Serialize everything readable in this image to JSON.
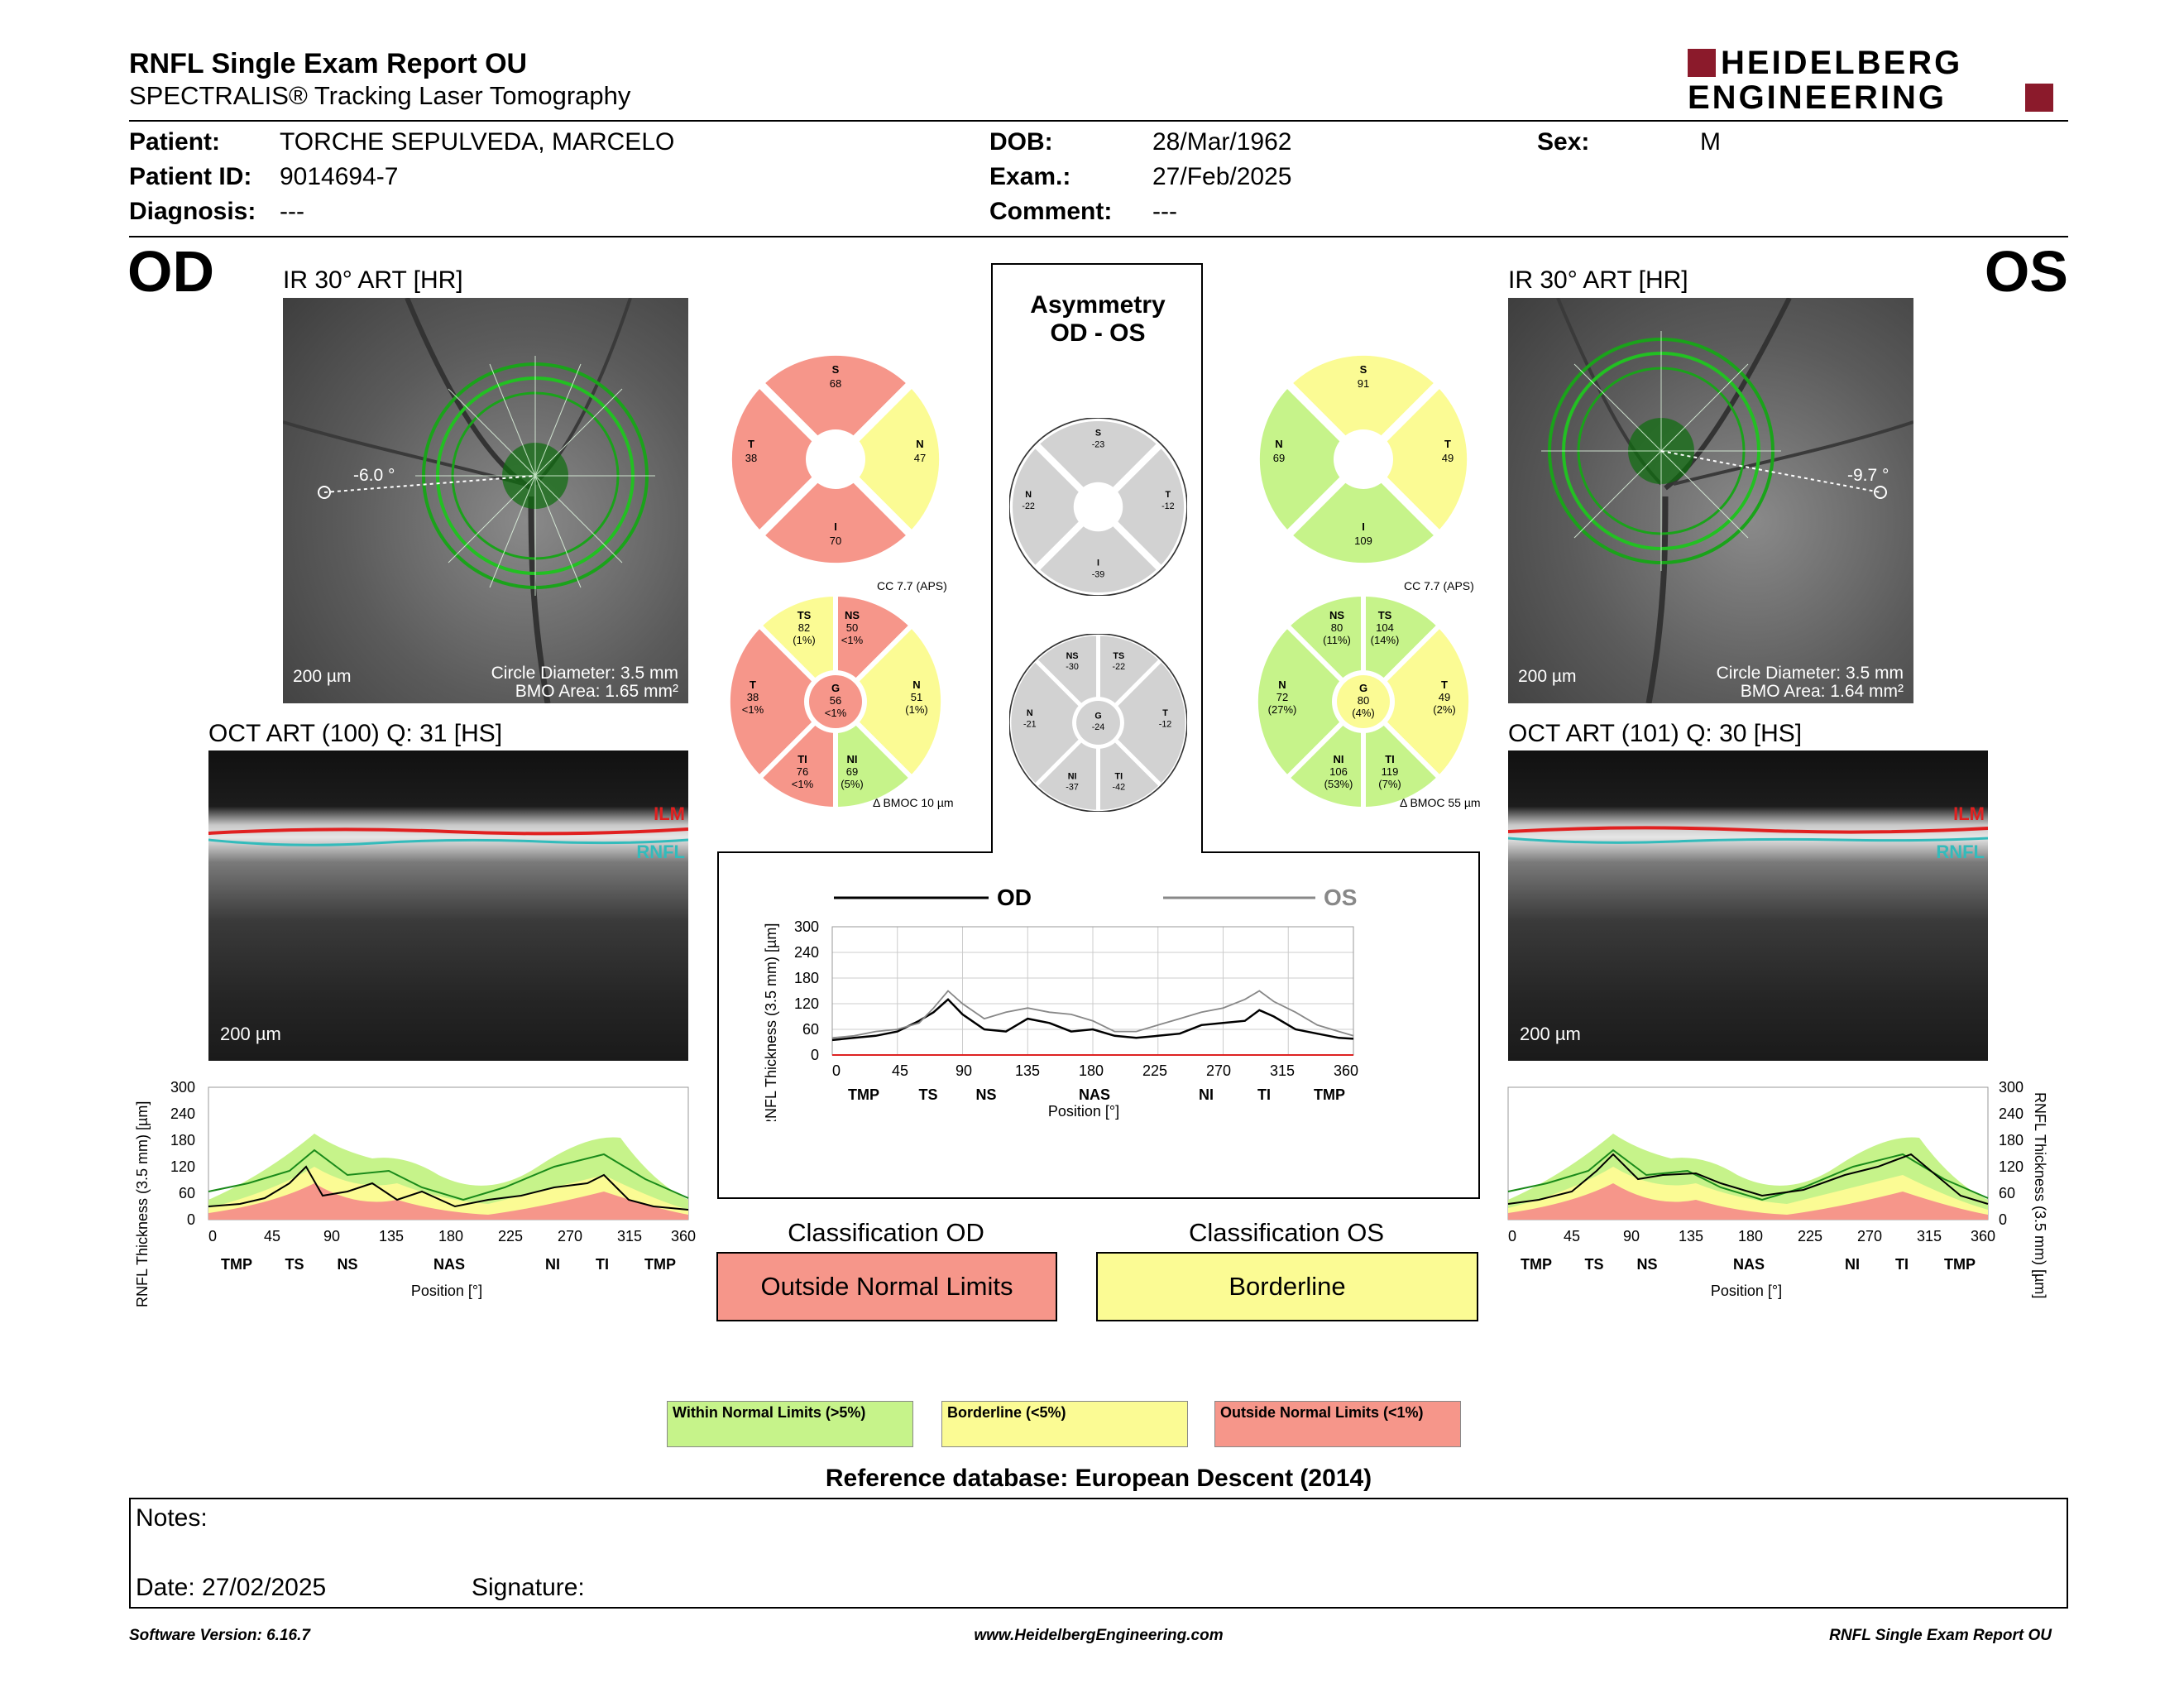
{
  "header": {
    "title": "RNFL Single Exam Report OU",
    "subtitle": "SPECTRALIS® Tracking Laser Tomography",
    "logo_line1": "HEIDELBERG",
    "logo_line2": "ENGINEERING"
  },
  "patient": {
    "patient_label": "Patient:",
    "patient_value": "TORCHE SEPULVEDA, MARCELO",
    "id_label": "Patient ID:",
    "id_value": "9014694-7",
    "diagnosis_label": "Diagnosis:",
    "diagnosis_value": "---",
    "dob_label": "DOB:",
    "dob_value": "28/Mar/1962",
    "exam_label": "Exam.:",
    "exam_value": "27/Feb/2025",
    "comment_label": "Comment:",
    "comment_value": "---",
    "sex_label": "Sex:",
    "sex_value": "M"
  },
  "od": {
    "eye": "OD",
    "ir_title": "IR 30° ART [HR]",
    "angle": "-6.0 °",
    "scale": "200 µm",
    "circle_diameter": "Circle Diameter: 3.5 mm",
    "bmo_area": "BMO Area: 1.65 mm²",
    "oct_title": "OCT ART (100) Q: 31 [HS]",
    "oct_scale": "200 µm",
    "ilm": "ILM",
    "rnfl": "RNFL",
    "cc": "CC 7.7 (APS)",
    "bmoc": "BMOC 10 µm",
    "quad": {
      "S": "68",
      "T": "38",
      "N": "47",
      "I": "70"
    },
    "sectors": {
      "TS": {
        "v": "82",
        "p": "(1%)"
      },
      "NS": {
        "v": "50",
        "p": "<1%"
      },
      "T": {
        "v": "38",
        "p": "<1%"
      },
      "G": {
        "v": "56",
        "p": "<1%"
      },
      "N": {
        "v": "51",
        "p": "(1%)"
      },
      "TI": {
        "v": "76",
        "p": "<1%"
      },
      "NI": {
        "v": "69",
        "p": "(5%)"
      }
    }
  },
  "os": {
    "eye": "OS",
    "ir_title": "IR 30° ART [HR]",
    "angle": "-9.7 °",
    "scale": "200 µm",
    "circle_diameter": "Circle Diameter: 3.5 mm",
    "bmo_area": "BMO Area: 1.64 mm²",
    "oct_title": "OCT ART (101) Q: 30 [HS]",
    "oct_scale": "200 µm",
    "ilm": "ILM",
    "rnfl": "RNFL",
    "cc": "CC 7.7 (APS)",
    "bmoc": "BMOC 55 µm",
    "quad": {
      "S": "91",
      "N": "69",
      "T": "49",
      "I": "109"
    },
    "sectors": {
      "NS": {
        "v": "80",
        "p": "(11%)"
      },
      "TS": {
        "v": "104",
        "p": "(14%)"
      },
      "N": {
        "v": "72",
        "p": "(27%)"
      },
      "G": {
        "v": "80",
        "p": "(4%)"
      },
      "T": {
        "v": "49",
        "p": "(2%)"
      },
      "NI": {
        "v": "106",
        "p": "(53%)"
      },
      "TI": {
        "v": "119",
        "p": "(7%)"
      }
    }
  },
  "asymmetry": {
    "title1": "Asymmetry",
    "title2": "OD - OS",
    "quad": {
      "S": "-23",
      "N": "-22",
      "T": "-12",
      "I": "-39"
    },
    "sectors": {
      "NS": "-30",
      "TS": "-22",
      "N": "-21",
      "G": "-24",
      "T": "-12",
      "NI": "-37",
      "TI": "-42"
    }
  },
  "charts": {
    "ylabel": "RNFL Thickness (3.5 mm) [µm]",
    "xlabel": "Position [°]",
    "yticks": [
      "0",
      "60",
      "120",
      "180",
      "240",
      "300"
    ],
    "xticks": [
      "0",
      "45",
      "90",
      "135",
      "180",
      "225",
      "270",
      "315",
      "360"
    ],
    "sectors": [
      "TMP",
      "TS",
      "NS",
      "NAS",
      "NI",
      "TI",
      "TMP"
    ],
    "legend_od": "OD",
    "legend_os": "OS"
  },
  "chart_data": [
    {
      "type": "line",
      "title": "",
      "xlabel": "Position [°]",
      "ylabel": "RNFL Thickness (3.5 mm) [µm]",
      "xlim": [
        0,
        360
      ],
      "ylim": [
        0,
        300
      ],
      "x": [
        0,
        15,
        30,
        45,
        60,
        70,
        80,
        90,
        105,
        120,
        135,
        150,
        165,
        180,
        195,
        210,
        225,
        240,
        255,
        270,
        285,
        295,
        305,
        320,
        335,
        350,
        360
      ],
      "series": [
        {
          "name": "OD",
          "values": [
            35,
            40,
            45,
            55,
            80,
            100,
            130,
            95,
            60,
            55,
            85,
            75,
            55,
            60,
            45,
            40,
            45,
            50,
            70,
            75,
            80,
            105,
            90,
            60,
            50,
            40,
            38
          ]
        },
        {
          "name": "OS",
          "values": [
            40,
            45,
            55,
            60,
            75,
            110,
            150,
            120,
            85,
            100,
            110,
            100,
            95,
            80,
            55,
            55,
            70,
            85,
            100,
            110,
            130,
            150,
            125,
            100,
            70,
            55,
            45
          ]
        }
      ]
    }
  ],
  "classification": {
    "od_title": "Classification OD",
    "od_value": "Outside Normal Limits",
    "os_title": "Classification OS",
    "os_value": "Borderline"
  },
  "legend": {
    "within": "Within Normal Limits (>5%)",
    "borderline": "Borderline (<5%)",
    "outside": "Outside Normal Limits (<1%)",
    "colors": {
      "within": "#c6f38a",
      "borderline": "#fbfb94",
      "outside": "#f6968a",
      "gray": "#d2d2d2"
    }
  },
  "reference": "Reference database: European Descent (2014)",
  "notes": {
    "label": "Notes:",
    "date": "Date: 27/02/2025",
    "signature": "Signature:"
  },
  "footer": {
    "version": "Software Version: 6.16.7",
    "url": "www.HeidelbergEngineering.com",
    "report": "RNFL Single Exam Report OU"
  }
}
